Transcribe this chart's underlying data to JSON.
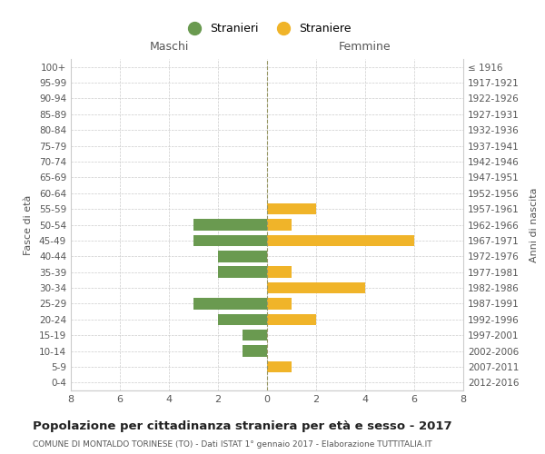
{
  "age_groups": [
    "100+",
    "95-99",
    "90-94",
    "85-89",
    "80-84",
    "75-79",
    "70-74",
    "65-69",
    "60-64",
    "55-59",
    "50-54",
    "45-49",
    "40-44",
    "35-39",
    "30-34",
    "25-29",
    "20-24",
    "15-19",
    "10-14",
    "5-9",
    "0-4"
  ],
  "birth_years": [
    "≤ 1916",
    "1917-1921",
    "1922-1926",
    "1927-1931",
    "1932-1936",
    "1937-1941",
    "1942-1946",
    "1947-1951",
    "1952-1956",
    "1957-1961",
    "1962-1966",
    "1967-1971",
    "1972-1976",
    "1977-1981",
    "1982-1986",
    "1987-1991",
    "1992-1996",
    "1997-2001",
    "2002-2006",
    "2007-2011",
    "2012-2016"
  ],
  "maschi": [
    0,
    0,
    0,
    0,
    0,
    0,
    0,
    0,
    0,
    0,
    3,
    3,
    2,
    2,
    0,
    3,
    2,
    1,
    1,
    0,
    0
  ],
  "femmine": [
    0,
    0,
    0,
    0,
    0,
    0,
    0,
    0,
    0,
    2,
    1,
    6,
    0,
    1,
    4,
    1,
    2,
    0,
    0,
    1,
    0
  ],
  "color_maschi": "#6a9a50",
  "color_femmine": "#f0b429",
  "title": "Popolazione per cittadinanza straniera per età e sesso - 2017",
  "subtitle": "COMUNE DI MONTALDO TORINESE (TO) - Dati ISTAT 1° gennaio 2017 - Elaborazione TUTTITALIA.IT",
  "ylabel_left": "Fasce di età",
  "ylabel_right": "Anni di nascita",
  "xlabel_left": "Maschi",
  "xlabel_right": "Femmine",
  "legend_maschi": "Stranieri",
  "legend_femmine": "Straniere",
  "xlim": 8,
  "background_color": "#ffffff",
  "grid_color": "#cccccc"
}
